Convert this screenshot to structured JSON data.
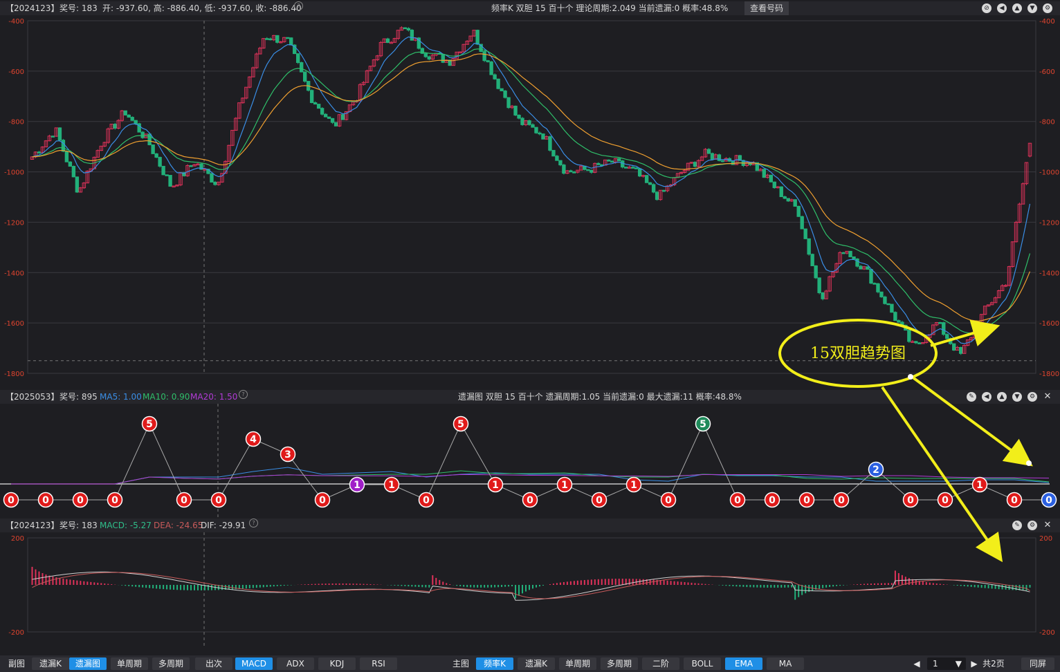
{
  "top_header": {
    "period": "【2024123】",
    "prize_label": "奖号: 183",
    "ohlc": "开: -937.60, 高: -886.40, 低: -937.60, 收: -886.40",
    "center": "频率K   双胆   15   百十个   理论周期:2.049   当前遗漏:0   概率:48.8%",
    "button": "查看号码"
  },
  "mid_header": {
    "period": "【2025053】",
    "prize_label": "奖号: 895",
    "ma5": "MA5: 1.00",
    "ma10": "MA10: 0.90",
    "ma20": "MA20: 1.50",
    "center": "遗漏图   双胆   15   百十个   遗漏周期:1.05   当前遗漏:0   最大遗漏:11   概率:48.8%"
  },
  "bottom_header": {
    "period": "【2024123】",
    "prize_label": "奖号: 183",
    "macd": "MACD: -5.27",
    "dea": "DEA: -24.65",
    "dif": "DIF: -29.91"
  },
  "annotation": {
    "text": "15双胆趋势图",
    "color": "#f2ee1a"
  },
  "colors": {
    "up": "#e0325a",
    "down": "#22b07a",
    "ma_blue": "#3a8ee6",
    "ma_green": "#2fbf6a",
    "ma_orange": "#f0a030",
    "axis_text": "#e0442e",
    "ma20_purple": "#b23bd6"
  },
  "chart_data": [
    {
      "type": "candlestick",
      "ylim": [
        -1800,
        -400
      ],
      "yticks": [
        -400,
        -600,
        -800,
        -1000,
        -1200,
        -1400,
        -1600,
        -1800
      ],
      "close_trend_anchors": [
        -940,
        -830,
        -1080,
        -880,
        -760,
        -880,
        -1060,
        -960,
        -1050,
        -720,
        -460,
        -480,
        -700,
        -820,
        -700,
        -500,
        -430,
        -530,
        -560,
        -440,
        -640,
        -800,
        -850,
        -1000,
        -990,
        -960,
        -1000,
        -1100,
        -1000,
        -930,
        -950,
        -960,
        -1060,
        -1150,
        -1500,
        -1300,
        -1400,
        -1550,
        -1700,
        -1600,
        -1730,
        -1560,
        -1430,
        -886.4
      ],
      "last_bar": {
        "open": -937.6,
        "high": -886.4,
        "low": -937.6,
        "close": -886.4
      },
      "series": [
        "MA blue",
        "MA green",
        "MA orange"
      ]
    },
    {
      "type": "scatter",
      "ylim": [
        0,
        5
      ],
      "points": [
        {
          "x": 1,
          "y": 0
        },
        {
          "x": 2,
          "y": 0
        },
        {
          "x": 3,
          "y": 0
        },
        {
          "x": 4,
          "y": 0
        },
        {
          "x": 5,
          "y": 5
        },
        {
          "x": 6,
          "y": 0
        },
        {
          "x": 7,
          "y": 0
        },
        {
          "x": 8,
          "y": 4
        },
        {
          "x": 9,
          "y": 3
        },
        {
          "x": 10,
          "y": 0
        },
        {
          "x": 11,
          "y": 1
        },
        {
          "x": 12,
          "y": 1
        },
        {
          "x": 13,
          "y": 0
        },
        {
          "x": 14,
          "y": 5
        },
        {
          "x": 15,
          "y": 1
        },
        {
          "x": 16,
          "y": 0
        },
        {
          "x": 17,
          "y": 1
        },
        {
          "x": 18,
          "y": 0
        },
        {
          "x": 19,
          "y": 1
        },
        {
          "x": 20,
          "y": 0
        },
        {
          "x": 21,
          "y": 5
        },
        {
          "x": 22,
          "y": 0
        },
        {
          "x": 23,
          "y": 0
        },
        {
          "x": 24,
          "y": 0
        },
        {
          "x": 25,
          "y": 0
        },
        {
          "x": 26,
          "y": 2
        },
        {
          "x": 27,
          "y": 0
        },
        {
          "x": 28,
          "y": 0
        },
        {
          "x": 29,
          "y": 1
        },
        {
          "x": 30,
          "y": 0
        },
        {
          "x": 31,
          "y": 0
        }
      ],
      "point_colors": {
        "11": "#a020c8",
        "21": "#1e8a5a",
        "26": "#2b5fe0",
        "31": "#2b5fe0"
      }
    },
    {
      "type": "line",
      "ylim": [
        -200,
        200
      ],
      "yticks": [
        200,
        -200
      ],
      "series": [
        "DIF",
        "DEA",
        "MACD histogram"
      ]
    }
  ],
  "toolbar": {
    "left": [
      {
        "label": "副图",
        "on": false,
        "plain": true
      },
      {
        "label": "遗漏K",
        "on": false
      },
      {
        "label": "遗漏图",
        "on": true
      },
      {
        "label": "单周期",
        "on": false
      },
      {
        "label": "多周期",
        "on": false
      },
      {
        "label": "出次",
        "on": false
      },
      {
        "label": "MACD",
        "on": true
      },
      {
        "label": "ADX",
        "on": false
      },
      {
        "label": "KDJ",
        "on": false
      },
      {
        "label": "RSI",
        "on": false
      }
    ],
    "right": [
      {
        "label": "主图",
        "on": false,
        "plain": true
      },
      {
        "label": "频率K",
        "on": true
      },
      {
        "label": "遗漏K",
        "on": false
      },
      {
        "label": "单周期",
        "on": false
      },
      {
        "label": "多周期",
        "on": false
      },
      {
        "label": "二阶",
        "on": false
      },
      {
        "label": "BOLL",
        "on": false
      },
      {
        "label": "EMA",
        "on": true
      },
      {
        "label": "MA",
        "on": false
      }
    ],
    "page_value": "1",
    "page_total": "共2页",
    "sync": "同屏"
  }
}
